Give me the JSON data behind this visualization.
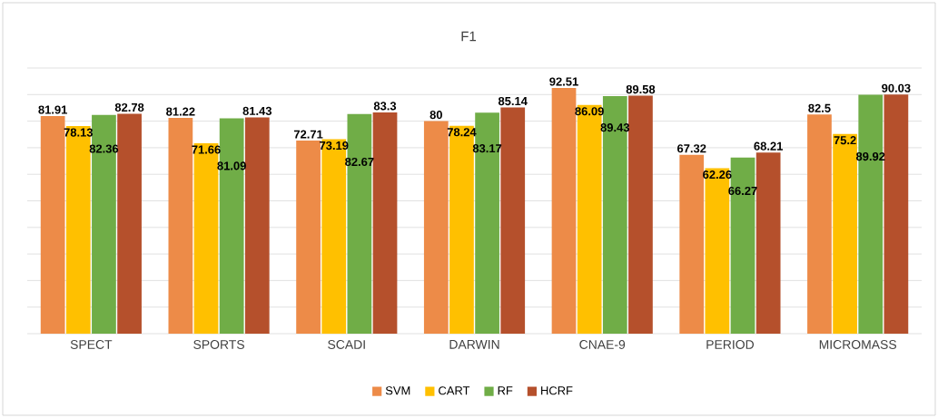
{
  "chart_data": {
    "type": "bar",
    "title": "F1",
    "categories": [
      "SPECT",
      "SPORTS",
      "SCADI",
      "DARWIN",
      "CNAE-9",
      "PERIOD",
      "MICROMASS"
    ],
    "series": [
      {
        "name": "SVM",
        "color": "#ed8b48",
        "values": [
          81.91,
          81.22,
          72.71,
          80,
          92.51,
          67.32,
          82.5
        ]
      },
      {
        "name": "CART",
        "color": "#ffc000",
        "values": [
          78.13,
          71.66,
          73.19,
          78.24,
          86.09,
          62.26,
          75.2
        ]
      },
      {
        "name": "RF",
        "color": "#70ad47",
        "values": [
          82.36,
          81.09,
          82.67,
          83.17,
          89.43,
          66.27,
          89.92
        ]
      },
      {
        "name": "HCRF",
        "color": "#b5502c",
        "values": [
          82.78,
          81.43,
          83.3,
          85.14,
          89.58,
          68.21,
          90.03
        ]
      }
    ],
    "ylim": [
      0,
      100
    ],
    "yticks": [
      {
        "value": 0,
        "label": null
      },
      {
        "value": 10,
        "label": null
      },
      {
        "value": 20,
        "label": null
      },
      {
        "value": 30,
        "label": null
      },
      {
        "value": 40,
        "label": null
      },
      {
        "value": 50,
        "label": null
      },
      {
        "value": 60,
        "label": null
      },
      {
        "value": 70,
        "label": null
      },
      {
        "value": 80,
        "label": null
      },
      {
        "value": 90,
        "label": null
      },
      {
        "value": 100,
        "label": null
      }
    ],
    "tick_labels": "x",
    "grid": "y",
    "legend": "bottom",
    "data_labels": true
  }
}
